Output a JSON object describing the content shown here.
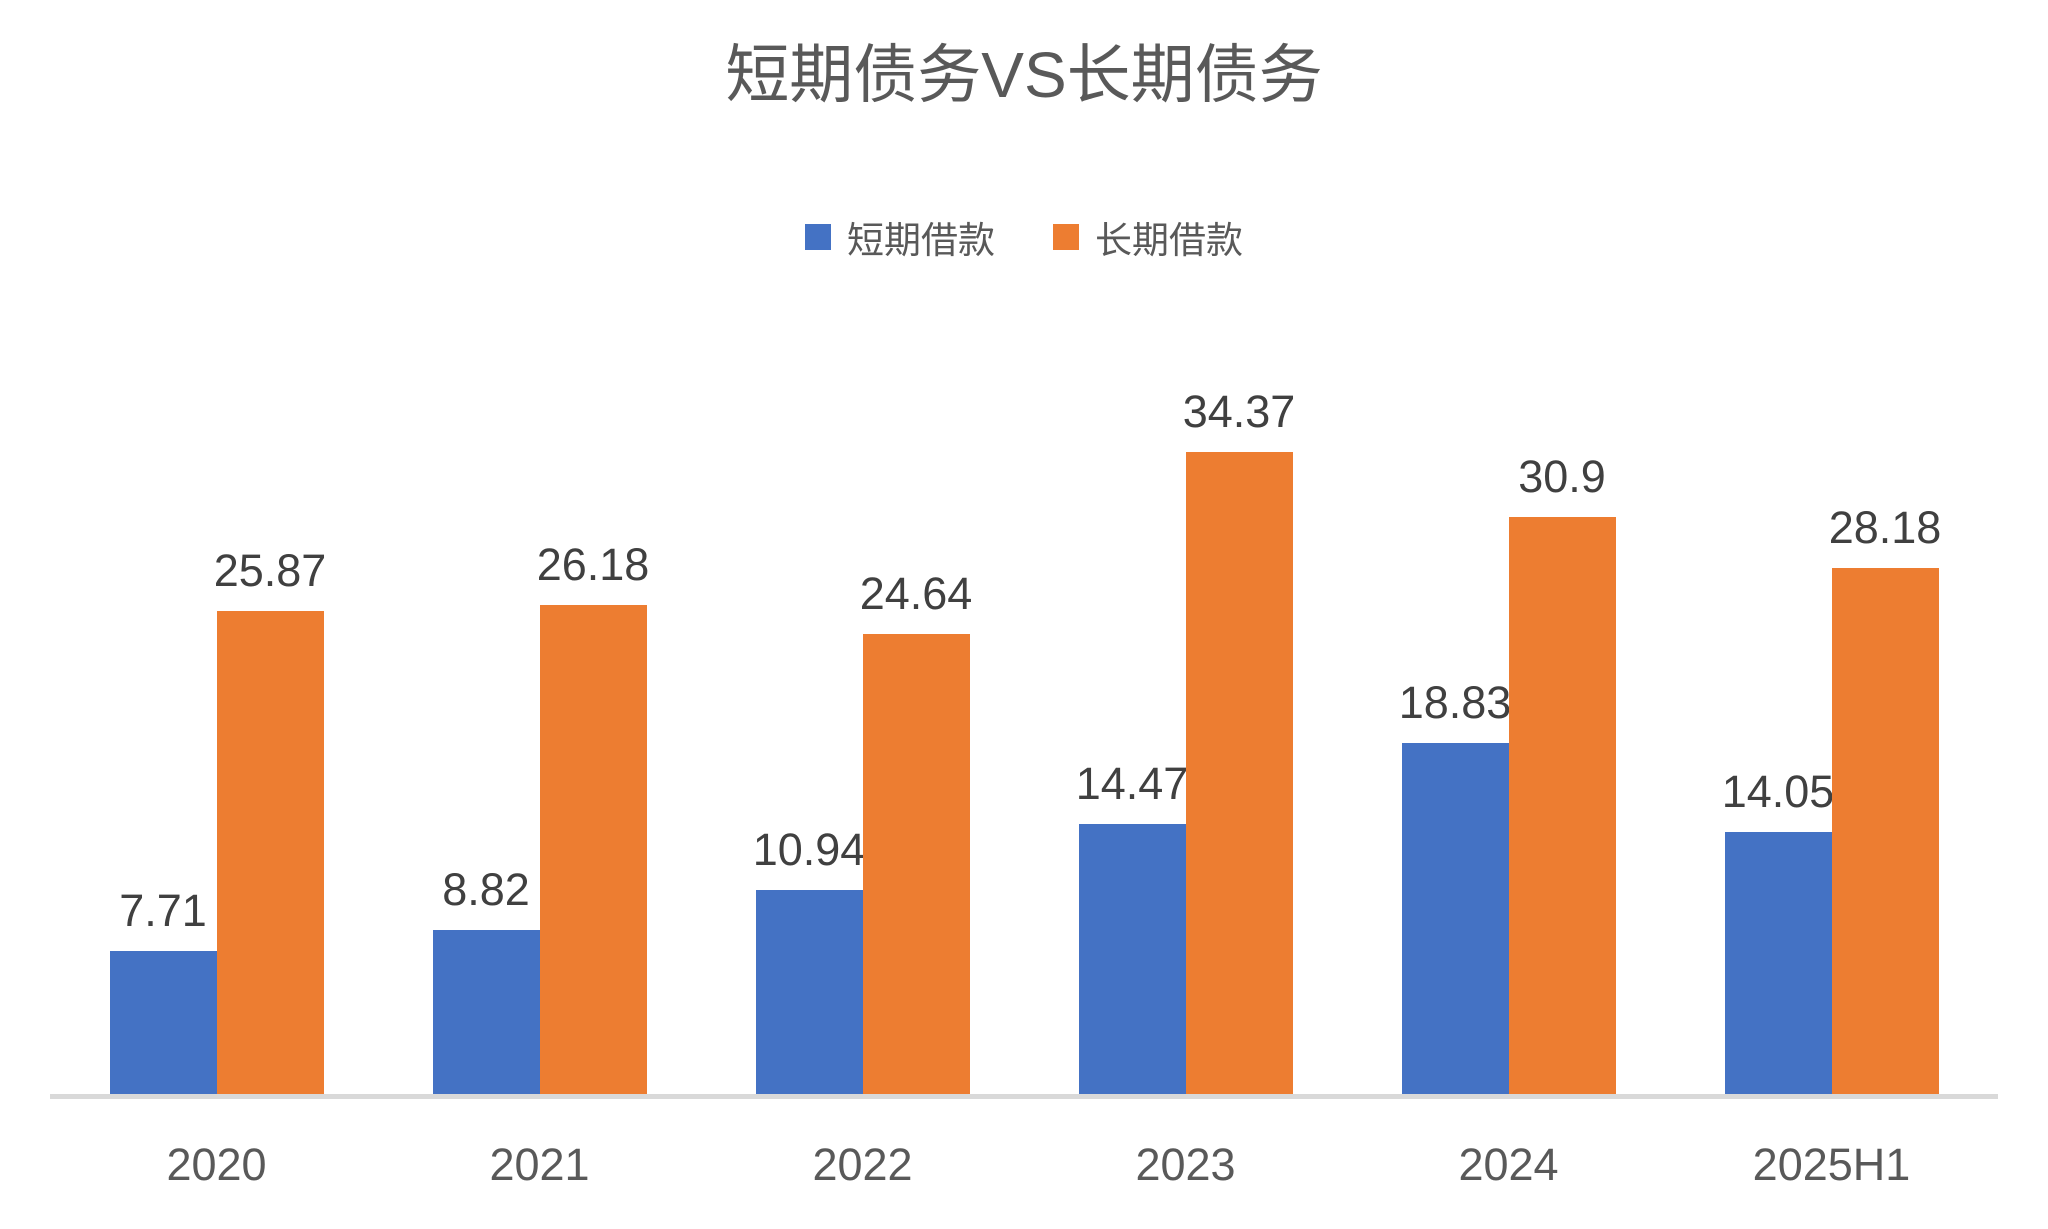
{
  "title": "短期债务VS长期债务",
  "chart_data": {
    "type": "bar",
    "title": "短期债务VS长期债务",
    "categories": [
      "2020",
      "2021",
      "2022",
      "2023",
      "2024",
      "2025H1"
    ],
    "series": [
      {
        "name": "短期借款",
        "color": "#4472C4",
        "values": [
          7.71,
          8.82,
          10.94,
          14.47,
          18.83,
          14.05
        ]
      },
      {
        "name": "长期借款",
        "color": "#ED7D31",
        "values": [
          25.87,
          26.18,
          24.64,
          34.37,
          30.9,
          28.18
        ]
      }
    ],
    "xlabel": "",
    "ylabel": "",
    "ylim": [
      0,
      40
    ],
    "grid": false,
    "y_axis_visible": false,
    "legend_position": "top",
    "data_labels": true,
    "baseline_color": "#d9d9d9",
    "text_colors": {
      "title": "#595959",
      "data_label": "#404040",
      "axis_label": "#595959",
      "legend_label": "#595959"
    }
  }
}
